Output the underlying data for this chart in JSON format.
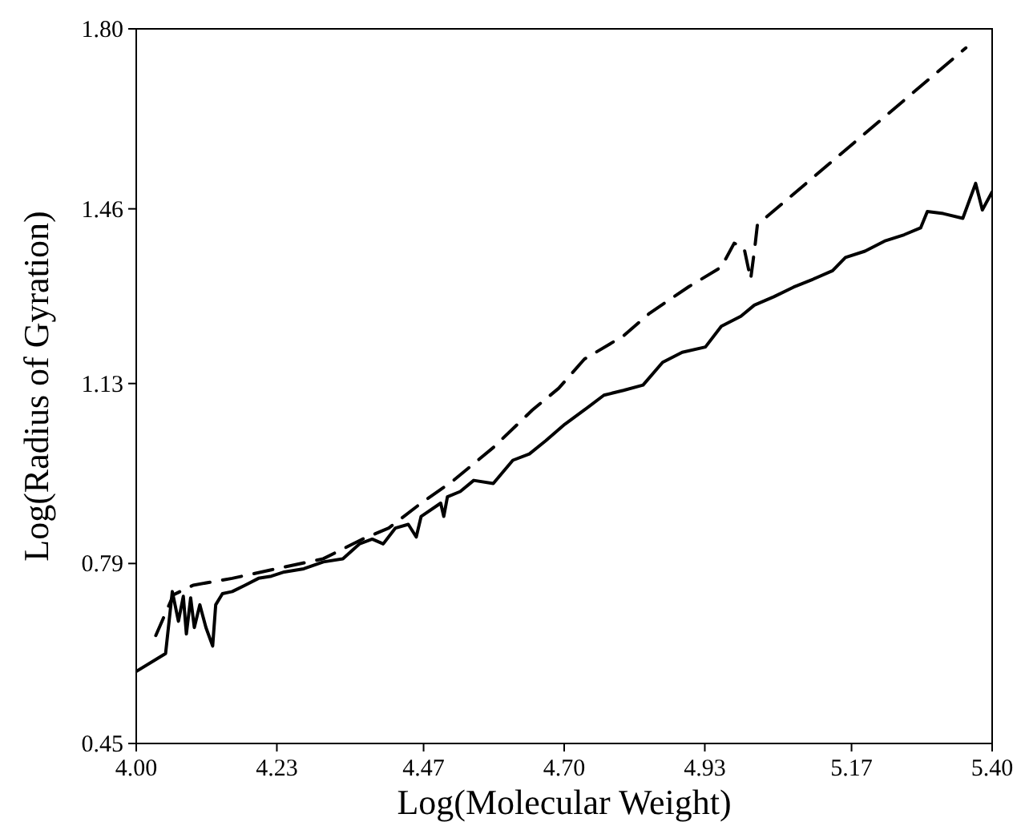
{
  "chart_data": {
    "type": "line",
    "xlabel": "Log(Molecular Weight)",
    "ylabel": "Log(Radius of Gyration)",
    "xlim": [
      4.0,
      5.4
    ],
    "ylim": [
      0.45,
      1.8
    ],
    "xticks": [
      {
        "value": 4.0,
        "label": "4.00"
      },
      4.23,
      4.47,
      {
        "value": 4.7,
        "label": "4.70"
      },
      4.93,
      5.17,
      {
        "value": 5.4,
        "label": "5.40"
      }
    ],
    "yticks": [
      0.45,
      0.79,
      1.13,
      1.46,
      {
        "value": 1.8,
        "label": "1.80"
      }
    ],
    "grid": false,
    "series": [
      {
        "color": "#000000",
        "line_style": "solid",
        "x": [
          4.0,
          4.048,
          4.059,
          4.069,
          4.077,
          4.082,
          4.089,
          4.095,
          4.104,
          4.114,
          4.125,
          4.13,
          4.141,
          4.157,
          4.178,
          4.2,
          4.221,
          4.242,
          4.274,
          4.306,
          4.338,
          4.365,
          4.386,
          4.404,
          4.424,
          4.445,
          4.458,
          4.466,
          4.498,
          4.503,
          4.509,
          4.53,
          4.552,
          4.584,
          4.616,
          4.643,
          4.67,
          4.701,
          4.733,
          4.765,
          4.797,
          4.829,
          4.861,
          4.893,
          4.931,
          4.957,
          4.989,
          5.011,
          5.043,
          5.075,
          5.107,
          5.139,
          5.16,
          5.192,
          5.224,
          5.256,
          5.283,
          5.294,
          5.32,
          5.352,
          5.373,
          5.384,
          5.4
        ],
        "values": [
          0.586,
          0.62,
          0.737,
          0.681,
          0.728,
          0.657,
          0.725,
          0.669,
          0.712,
          0.669,
          0.634,
          0.712,
          0.733,
          0.737,
          0.749,
          0.762,
          0.766,
          0.774,
          0.78,
          0.793,
          0.799,
          0.827,
          0.836,
          0.827,
          0.857,
          0.864,
          0.84,
          0.879,
          0.904,
          0.879,
          0.916,
          0.926,
          0.947,
          0.941,
          0.985,
          0.997,
          1.022,
          1.053,
          1.08,
          1.108,
          1.117,
          1.127,
          1.17,
          1.189,
          1.199,
          1.238,
          1.257,
          1.278,
          1.294,
          1.312,
          1.327,
          1.343,
          1.368,
          1.38,
          1.399,
          1.411,
          1.424,
          1.455,
          1.451,
          1.442,
          1.508,
          1.458,
          1.492
        ]
      },
      {
        "color": "#000000",
        "line_style": "dashed",
        "x": [
          4.032,
          4.061,
          4.093,
          4.157,
          4.221,
          4.306,
          4.37,
          4.413,
          4.466,
          4.519,
          4.584,
          4.648,
          4.691,
          4.733,
          4.797,
          4.84,
          4.904,
          4.957,
          4.978,
          4.994,
          5.005,
          5.012,
          5.016,
          5.357
        ],
        "values": [
          0.654,
          0.731,
          0.749,
          0.762,
          0.778,
          0.799,
          0.836,
          0.857,
          0.904,
          0.947,
          1.009,
          1.08,
          1.121,
          1.176,
          1.22,
          1.263,
          1.313,
          1.35,
          1.395,
          1.387,
          1.327,
          1.389,
          1.43,
          1.764
        ]
      }
    ]
  }
}
